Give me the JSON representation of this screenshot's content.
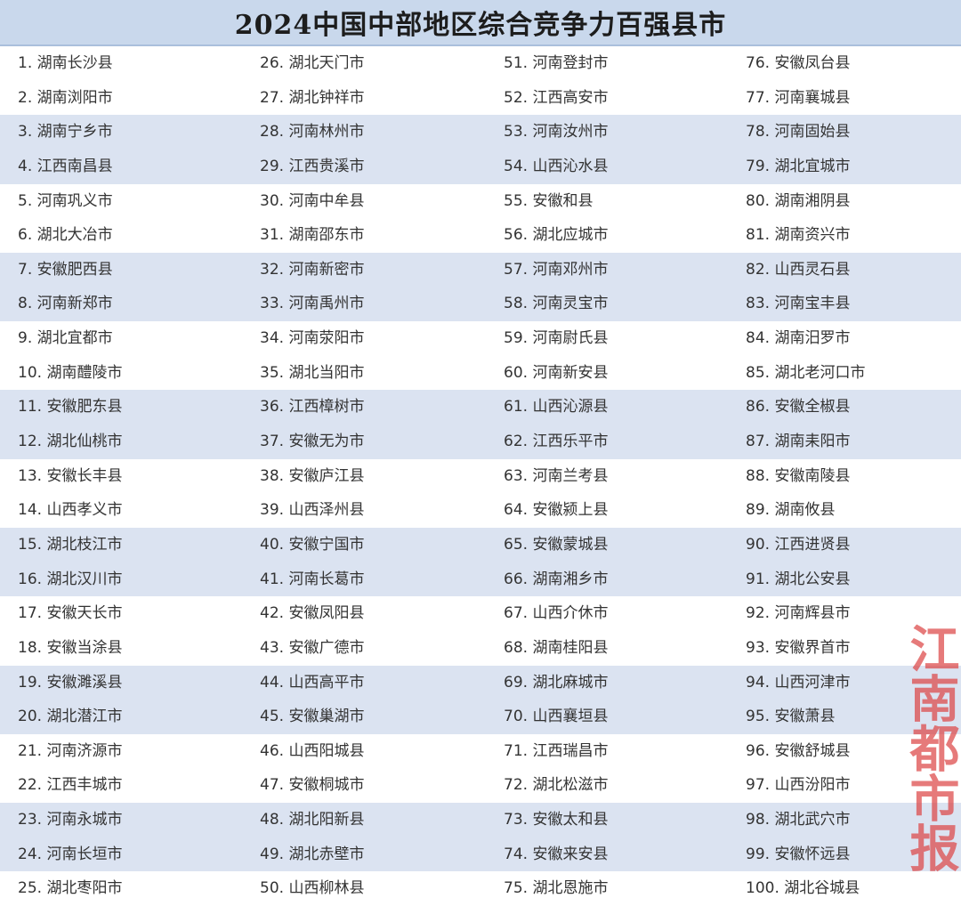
{
  "title": "2024中国中部地区综合竞争力百强县市",
  "watermark": "江南都市报",
  "colors": {
    "header_bg": "#c9d8ec",
    "band_bg": "#dbe3f1",
    "watermark": "#dc4646"
  },
  "columns": [
    [
      "1. 湖南长沙县",
      "2. 湖南浏阳市",
      "3. 湖南宁乡市",
      "4. 江西南昌县",
      "5. 河南巩义市",
      "6. 湖北大冶市",
      "7. 安徽肥西县",
      "8. 河南新郑市",
      "9. 湖北宜都市",
      "10. 湖南醴陵市",
      "11. 安徽肥东县",
      "12. 湖北仙桃市",
      "13. 安徽长丰县",
      "14. 山西孝义市",
      "15. 湖北枝江市",
      "16. 湖北汉川市",
      "17. 安徽天长市",
      "18. 安徽当涂县",
      "19. 安徽濉溪县",
      "20. 湖北潜江市",
      "21. 河南济源市",
      "22. 江西丰城市",
      "23. 河南永城市",
      "24. 河南长垣市",
      "25. 湖北枣阳市"
    ],
    [
      "26. 湖北天门市",
      "27. 湖北钟祥市",
      "28. 河南林州市",
      "29. 江西贵溪市",
      "30. 河南中牟县",
      "31. 湖南邵东市",
      "32. 河南新密市",
      "33. 河南禹州市",
      "34. 河南荥阳市",
      "35. 湖北当阳市",
      "36. 江西樟树市",
      "37. 安徽无为市",
      "38. 安徽庐江县",
      "39. 山西泽州县",
      "40. 安徽宁国市",
      "41. 河南长葛市",
      "42. 安徽凤阳县",
      "43. 安徽广德市",
      "44. 山西高平市",
      "45. 安徽巢湖市",
      "46. 山西阳城县",
      "47. 安徽桐城市",
      "48. 湖北阳新县",
      "49. 湖北赤壁市",
      "50. 山西柳林县"
    ],
    [
      "51. 河南登封市",
      "52. 江西高安市",
      "53. 河南汝州市",
      "54. 山西沁水县",
      "55. 安徽和县",
      "56. 湖北应城市",
      "57. 河南邓州市",
      "58. 河南灵宝市",
      "59. 河南尉氏县",
      "60. 河南新安县",
      "61. 山西沁源县",
      "62. 江西乐平市",
      "63. 河南兰考县",
      "64. 安徽颍上县",
      "65. 安徽蒙城县",
      "66. 湖南湘乡市",
      "67. 山西介休市",
      "68. 湖南桂阳县",
      "69. 湖北麻城市",
      "70. 山西襄垣县",
      "71. 江西瑞昌市",
      "72. 湖北松滋市",
      "73. 安徽太和县",
      "74. 安徽来安县",
      "75. 湖北恩施市"
    ],
    [
      "76. 安徽凤台县",
      "77. 河南襄城县",
      "78. 河南固始县",
      "79. 湖北宜城市",
      "80. 湖南湘阴县",
      "81. 湖南资兴市",
      "82. 山西灵石县",
      "83. 河南宝丰县",
      "84. 湖南汨罗市",
      "85. 湖北老河口市",
      "86. 安徽全椒县",
      "87. 湖南耒阳市",
      "88. 安徽南陵县",
      "89. 湖南攸县",
      "90. 江西进贤县",
      "91. 湖北公安县",
      "92. 河南辉县市",
      "93. 安徽界首市",
      "94. 山西河津市",
      "95. 安徽萧县",
      "96. 安徽舒城县",
      "97. 山西汾阳市",
      "98. 湖北武穴市",
      "99. 安徽怀远县",
      "100. 湖北谷城县"
    ]
  ]
}
